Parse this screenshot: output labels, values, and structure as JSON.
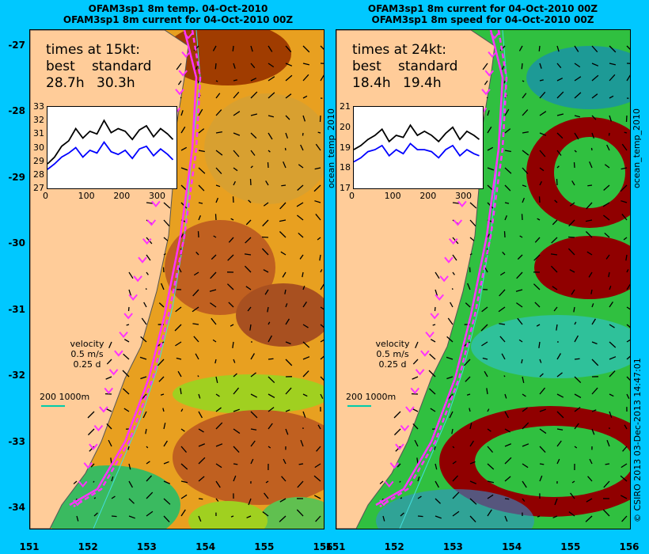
{
  "titles": {
    "left": [
      "OFAM3sp1 8m temp. 04-Oct-2010",
      "OFAM3sp1 8m current for 04-Oct-2010 00Z"
    ],
    "right": [
      "OFAM3sp1 8m current for 04-Oct-2010 00Z",
      "OFAM3sp1 8m speed for 04-Oct-2010 00Z"
    ]
  },
  "colors": {
    "background": "#00c8ff",
    "land": "#ffcc99",
    "route_best": "#ff33ff",
    "route_standard": "#ff33ff",
    "inset_best": "#0000ff",
    "inset_standard": "#000000"
  },
  "map_axes": {
    "lat_ticks": [
      "-27",
      "-28",
      "-29",
      "-30",
      "-31",
      "-32",
      "-33",
      "-34"
    ],
    "lon_ticks": [
      "151",
      "152",
      "153",
      "154",
      "155",
      "156"
    ],
    "lat_range": [
      -34.3,
      -26.75
    ],
    "lon_range": [
      151,
      156
    ]
  },
  "left_panel": {
    "times_heading": "times at 15kt:",
    "labels": [
      "best",
      "standard"
    ],
    "values": [
      "28.7h",
      "30.3h"
    ],
    "velocity": [
      "velocity",
      "0.5 m/s",
      "0.25 d"
    ],
    "depth_legend": "200  1000m",
    "side_label": "ocean_temp_2010"
  },
  "right_panel": {
    "times_heading": "times at 24kt:",
    "labels": [
      "best",
      "standard"
    ],
    "values": [
      "18.4h",
      "19.4h"
    ],
    "velocity": [
      "velocity",
      "0.5 m/s",
      "0.25 d"
    ],
    "depth_legend": "200  1000m",
    "side_label": "ocean_temp_2010"
  },
  "credit": "© CSIRO 2013   03-Dec-2013 14:47:01",
  "chart_data": [
    {
      "type": "line",
      "panel": "left-inset",
      "x_ticks": [
        "0",
        "100",
        "200",
        "300"
      ],
      "y_ticks": [
        "27",
        "28",
        "29",
        "30",
        "31",
        "32",
        "33"
      ],
      "xlim": [
        0,
        365
      ],
      "ylim": [
        27,
        33
      ],
      "series": [
        {
          "color": "#000000",
          "x": [
            0,
            20,
            40,
            60,
            80,
            100,
            120,
            140,
            160,
            180,
            200,
            220,
            240,
            260,
            280,
            300,
            320,
            340,
            355
          ],
          "values": [
            28.8,
            29.3,
            30.1,
            30.5,
            31.4,
            30.7,
            31.2,
            31.0,
            32.0,
            31.1,
            31.4,
            31.2,
            30.6,
            31.3,
            31.6,
            30.8,
            31.4,
            31.0,
            30.6
          ]
        },
        {
          "color": "#0000ff",
          "x": [
            0,
            20,
            40,
            60,
            80,
            100,
            120,
            140,
            160,
            180,
            200,
            220,
            240,
            260,
            280,
            300,
            320,
            340,
            355
          ],
          "values": [
            28.4,
            28.8,
            29.3,
            29.6,
            30.0,
            29.3,
            29.8,
            29.6,
            30.4,
            29.7,
            29.5,
            29.8,
            29.2,
            29.9,
            30.1,
            29.4,
            29.9,
            29.5,
            29.1
          ]
        }
      ]
    },
    {
      "type": "line",
      "panel": "right-inset",
      "x_ticks": [
        "0",
        "100",
        "200",
        "300"
      ],
      "y_ticks": [
        "17",
        "18",
        "19",
        "20",
        "21"
      ],
      "xlim": [
        0,
        365
      ],
      "ylim": [
        17,
        21
      ],
      "series": [
        {
          "color": "#000000",
          "x": [
            0,
            20,
            40,
            60,
            80,
            100,
            120,
            140,
            160,
            180,
            200,
            220,
            240,
            260,
            280,
            300,
            320,
            340,
            355
          ],
          "values": [
            18.9,
            19.1,
            19.4,
            19.6,
            19.9,
            19.3,
            19.6,
            19.5,
            20.1,
            19.6,
            19.8,
            19.6,
            19.3,
            19.7,
            20.0,
            19.4,
            19.8,
            19.6,
            19.4
          ]
        },
        {
          "color": "#0000ff",
          "x": [
            0,
            20,
            40,
            60,
            80,
            100,
            120,
            140,
            160,
            180,
            200,
            220,
            240,
            260,
            280,
            300,
            320,
            340,
            355
          ],
          "values": [
            18.3,
            18.5,
            18.8,
            18.9,
            19.1,
            18.6,
            18.9,
            18.7,
            19.2,
            18.9,
            18.9,
            18.8,
            18.5,
            18.9,
            19.1,
            18.6,
            18.9,
            18.7,
            18.6
          ]
        }
      ]
    }
  ]
}
